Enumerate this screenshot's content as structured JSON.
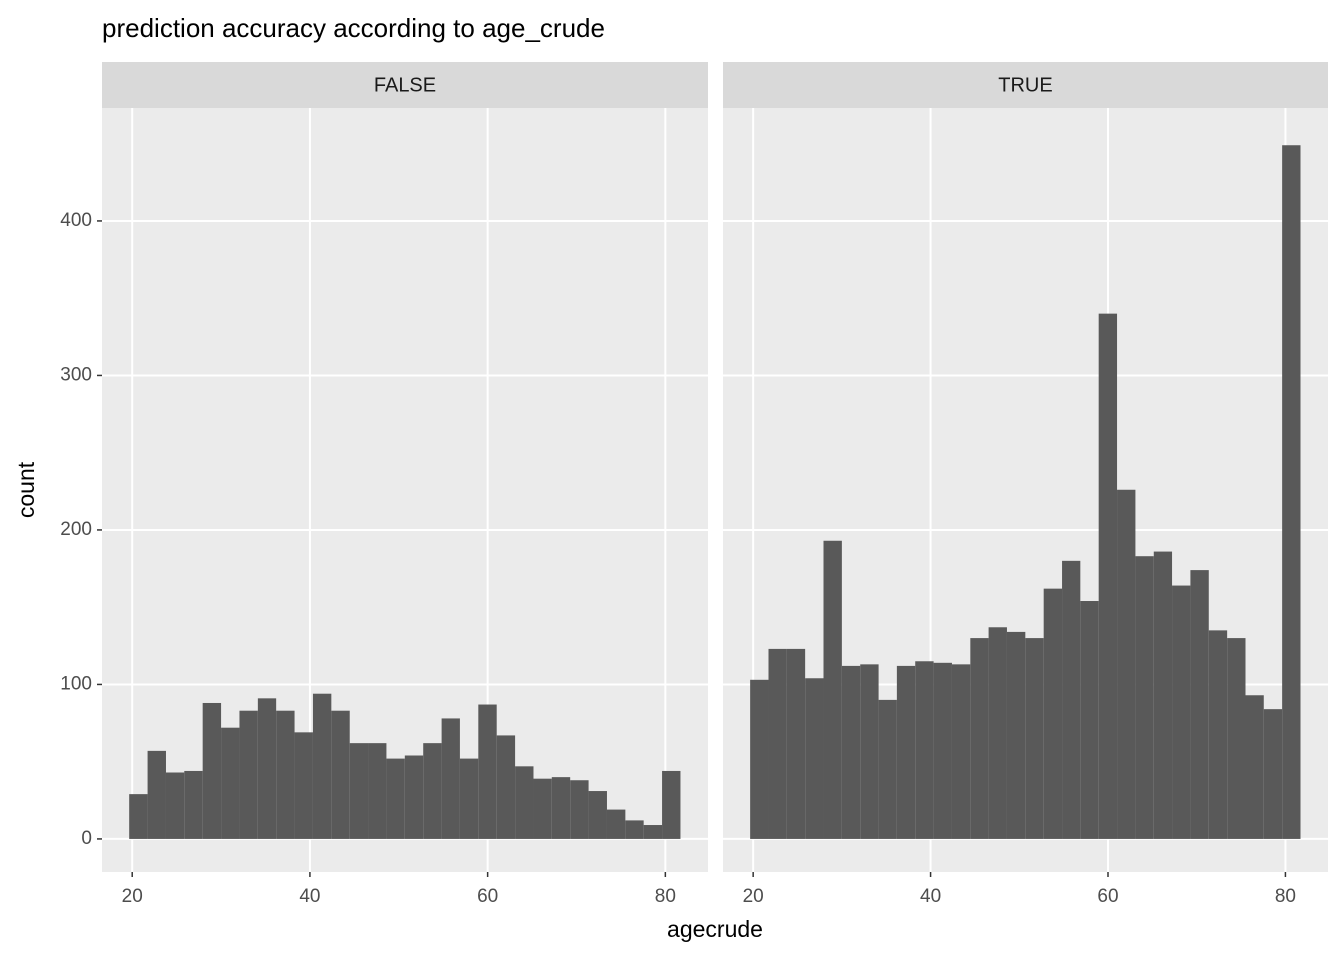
{
  "title": "prediction accuracy according to age_crude",
  "x_label": "agecrude",
  "y_label": "count",
  "chart_data": [
    {
      "type": "histogram",
      "title": "FALSE",
      "color": "#595959",
      "grid": true,
      "bins": [
        19.66,
        21.73,
        23.8,
        25.86,
        27.93,
        30.0,
        32.07,
        34.14,
        36.2,
        38.27,
        40.34,
        42.41,
        44.48,
        46.54,
        48.61,
        50.68,
        52.75,
        54.82,
        56.88,
        58.95,
        61.02,
        63.09,
        65.16,
        67.22,
        69.29,
        71.36,
        73.43,
        75.5,
        77.56,
        79.63,
        81.7
      ],
      "values": [
        29,
        57,
        43,
        44,
        88,
        72,
        83,
        91,
        83,
        69,
        94,
        83,
        62,
        62,
        52,
        54,
        62,
        78,
        52,
        87,
        67,
        47,
        39,
        40,
        38,
        31,
        19,
        12,
        9,
        44
      ],
      "xlim": [
        16.6,
        84.8
      ],
      "xticks": [
        20,
        40,
        60,
        80
      ],
      "ylim": [
        -21.4,
        473.1
      ],
      "yticks": [
        0,
        100,
        200,
        300,
        400
      ]
    },
    {
      "type": "histogram",
      "title": "TRUE",
      "color": "#595959",
      "grid": true,
      "bins": [
        19.66,
        21.73,
        23.8,
        25.86,
        27.93,
        30.0,
        32.07,
        34.14,
        36.2,
        38.27,
        40.34,
        42.41,
        44.48,
        46.54,
        48.61,
        50.68,
        52.75,
        54.82,
        56.88,
        58.95,
        61.02,
        63.09,
        65.16,
        67.22,
        69.29,
        71.36,
        73.43,
        75.5,
        77.56,
        79.63,
        81.7
      ],
      "values": [
        103,
        123,
        123,
        104,
        193,
        112,
        113,
        90,
        112,
        115,
        114,
        113,
        130,
        137,
        134,
        130,
        162,
        180,
        154,
        340,
        226,
        183,
        186,
        164,
        174,
        135,
        130,
        93,
        84,
        449
      ],
      "xlim": [
        16.6,
        84.8
      ],
      "xticks": [
        20,
        40,
        60,
        80
      ],
      "ylim": [
        -21.4,
        473.1
      ],
      "yticks": [
        0,
        100,
        200,
        300,
        400
      ]
    }
  ]
}
